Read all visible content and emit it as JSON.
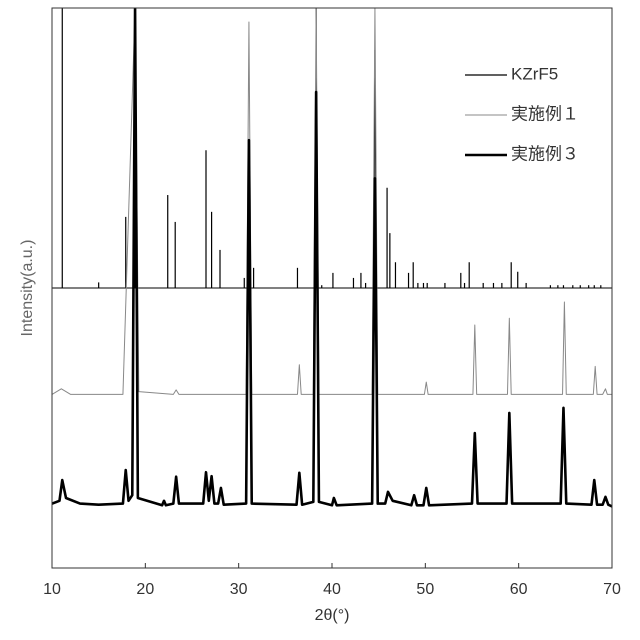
{
  "chart_data": {
    "type": "line",
    "xlabel": "2θ(°)",
    "ylabel": "Intensity(a.u.)",
    "xlim": [
      10,
      70
    ],
    "xticks": [
      10,
      20,
      30,
      40,
      50,
      60,
      70
    ],
    "ylim": [
      0,
      100
    ],
    "legend": "upper right",
    "series": [
      {
        "name": "KZrF5",
        "color": "#000000",
        "style": "sticks",
        "baseline": 50,
        "x": [
          11.1,
          15.0,
          17.9,
          18.9,
          22.4,
          23.2,
          26.5,
          27.1,
          28.0,
          30.6,
          31.1,
          31.6,
          36.3,
          38.3,
          38.9,
          40.1,
          42.3,
          43.1,
          43.6,
          44.6,
          45.9,
          46.2,
          46.8,
          48.2,
          48.7,
          49.2,
          49.8,
          50.2,
          52.1,
          53.8,
          54.2,
          54.7,
          56.2,
          57.3,
          58.2,
          59.2,
          59.9,
          60.8,
          63.4,
          64.2,
          64.8,
          65.8,
          66.6,
          67.5,
          68.1,
          68.8
        ],
        "values": [
          100,
          51,
          62.7,
          100,
          66.6,
          61.8,
          74.6,
          63.6,
          56.8,
          51.8,
          76.4,
          53.6,
          53.6,
          100,
          50.5,
          52.7,
          51.8,
          52.7,
          50.9,
          92.5,
          67.9,
          59.8,
          54.6,
          52.7,
          54.6,
          50.9,
          50.9,
          50.9,
          50.9,
          52.7,
          50.9,
          54.6,
          50.9,
          50.9,
          50.9,
          54.6,
          52.9,
          50.9,
          50.5,
          50.5,
          50.5,
          50.5,
          50.5,
          50.5,
          50.5,
          50.5
        ]
      },
      {
        "name": "実施例１",
        "color": "#888888",
        "style": "line",
        "width": 1,
        "x": [
          10,
          11,
          12,
          17.6,
          18.9,
          19.3,
          23.0,
          23.3,
          23.6,
          30.8,
          31.1,
          31.4,
          36.3,
          36.5,
          36.7,
          38.0,
          38.3,
          38.6,
          44.3,
          44.6,
          44.9,
          49.9,
          50.1,
          50.3,
          55.1,
          55.3,
          55.5,
          58.8,
          59.0,
          59.2,
          64.7,
          64.9,
          65.1,
          68.0,
          68.2,
          68.4,
          69.0,
          69.3,
          69.5,
          70
        ],
        "values": [
          31,
          32,
          31,
          31,
          100,
          31.5,
          31,
          31.8,
          31,
          31,
          97.5,
          31,
          31,
          36.3,
          31,
          31,
          100,
          31,
          31,
          100,
          31,
          31,
          33.2,
          31,
          31,
          43.4,
          31,
          31,
          44.6,
          31,
          31,
          47.5,
          31,
          31,
          36,
          31,
          31,
          32,
          31,
          31
        ]
      },
      {
        "name": "実施例３",
        "color": "#000000",
        "style": "line",
        "width": 2.6,
        "x": [
          10,
          10.8,
          11.1,
          11.5,
          13,
          15,
          17.6,
          17.9,
          18.2,
          18.6,
          18.9,
          19.2,
          21.8,
          22.0,
          22.2,
          23.0,
          23.3,
          23.6,
          26.2,
          26.5,
          26.8,
          27.1,
          27.4,
          27.8,
          28.1,
          28.4,
          30.8,
          31.1,
          31.4,
          36.2,
          36.5,
          36.8,
          38.0,
          38.3,
          38.6,
          40.0,
          40.2,
          40.5,
          44.3,
          44.6,
          44.9,
          45.7,
          46.0,
          46.5,
          48.5,
          48.8,
          49.1,
          49.8,
          50.1,
          50.4,
          55.0,
          55.3,
          55.6,
          58.7,
          59.0,
          59.3,
          64.5,
          64.8,
          65.1,
          67.8,
          68.1,
          68.4,
          69.0,
          69.3,
          69.6,
          70
        ],
        "values": [
          11.5,
          12,
          15.7,
          12.5,
          11.5,
          11.3,
          11.5,
          17.5,
          12,
          13,
          100,
          12.5,
          11.2,
          12,
          11.2,
          11.5,
          16.3,
          11.5,
          11.5,
          17.1,
          12,
          16.4,
          11.5,
          11.5,
          14.3,
          11.3,
          11.5,
          76.4,
          11.5,
          11.3,
          17,
          11.3,
          11.8,
          85,
          11.8,
          11.2,
          12.5,
          11.2,
          11.5,
          69.6,
          11.5,
          11.5,
          13.6,
          12,
          11.2,
          13,
          11.2,
          11.2,
          14.3,
          11.2,
          11.5,
          24.1,
          11.5,
          11.5,
          27.7,
          11.5,
          11.5,
          28.6,
          11.5,
          11.3,
          15.7,
          11.3,
          11.3,
          12.7,
          11.3,
          11
        ]
      }
    ]
  }
}
